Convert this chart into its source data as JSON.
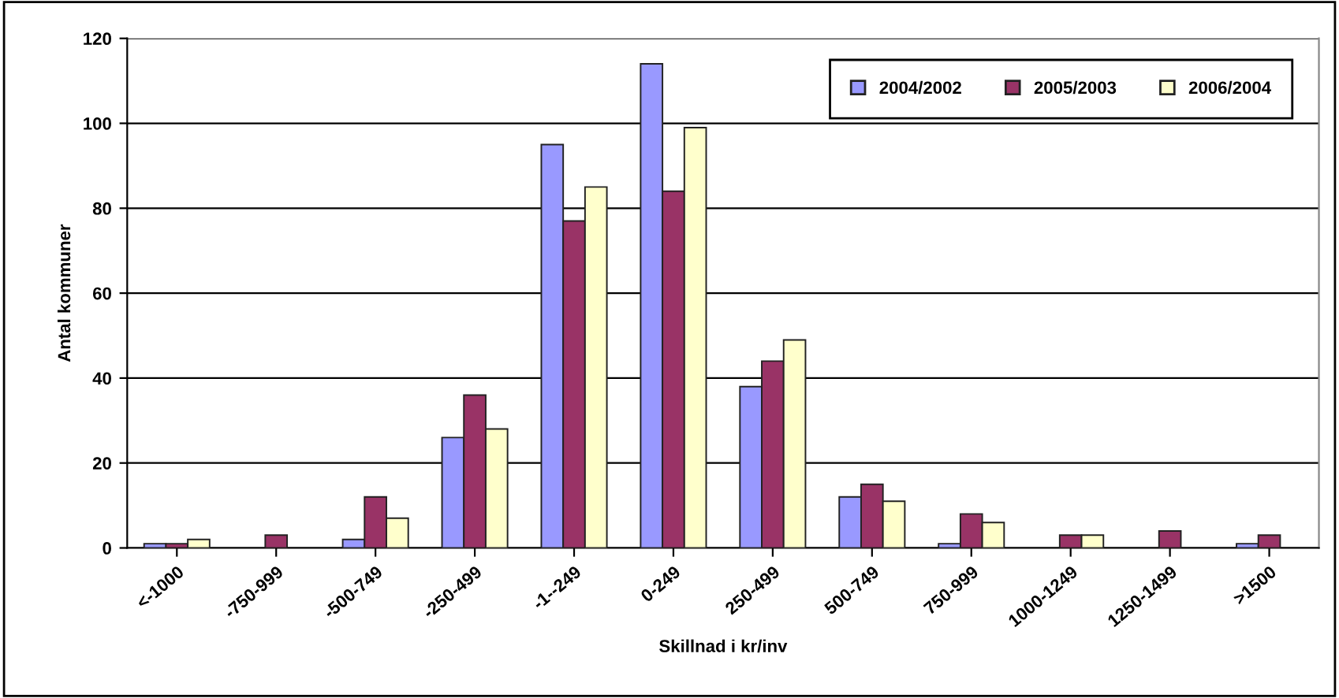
{
  "chart_data": {
    "type": "bar",
    "xlabel": "Skillnad i kr/inv",
    "ylabel": "Antal kommuner",
    "categories": [
      "<-1000",
      "-750-999",
      "-500-749",
      "-250-499",
      "-1--249",
      "0-249",
      "250-499",
      "500-749",
      "750-999",
      "1000-1249",
      "1250-1499",
      ">1500"
    ],
    "series": [
      {
        "name": "2004/2002",
        "color": "#9999ff",
        "values": [
          1,
          0,
          2,
          26,
          95,
          114,
          38,
          12,
          1,
          0,
          0,
          1
        ]
      },
      {
        "name": "2005/2003",
        "color": "#993366",
        "values": [
          1,
          3,
          12,
          36,
          77,
          84,
          44,
          15,
          8,
          3,
          4,
          3
        ]
      },
      {
        "name": "2006/2004",
        "color": "#ffffcc",
        "values": [
          2,
          0,
          7,
          28,
          85,
          99,
          49,
          11,
          6,
          3,
          0,
          0
        ]
      }
    ],
    "ylim": [
      0,
      120
    ],
    "yticks": [
      0,
      20,
      40,
      60,
      80,
      100,
      120
    ],
    "grid": "y",
    "legend": "top right"
  }
}
